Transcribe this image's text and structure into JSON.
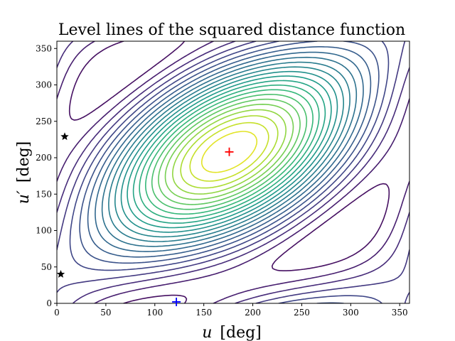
{
  "chart_data": {
    "type": "contour",
    "title": "Level lines of the squared distance function",
    "xlabel_var": "u",
    "xlabel_unit": "[deg]",
    "ylabel_var": "u′",
    "ylabel_unit": "[deg]",
    "xlim": [
      0,
      360
    ],
    "ylim": [
      0,
      360
    ],
    "xticks": [
      0,
      50,
      100,
      150,
      200,
      250,
      300,
      350
    ],
    "yticks": [
      0,
      50,
      100,
      150,
      200,
      250,
      300,
      350
    ],
    "colormap": "viridis",
    "levels": 24,
    "grid": false,
    "markers": [
      {
        "type": "plus",
        "color": "#ff0000",
        "x": 176,
        "y": 208
      },
      {
        "type": "plus",
        "color": "#0000ff",
        "x": 122,
        "y": 2
      },
      {
        "type": "star",
        "color": "#000000",
        "x": 8,
        "y": 229
      },
      {
        "type": "star",
        "color": "#000000",
        "x": 4,
        "y": 40
      }
    ]
  }
}
